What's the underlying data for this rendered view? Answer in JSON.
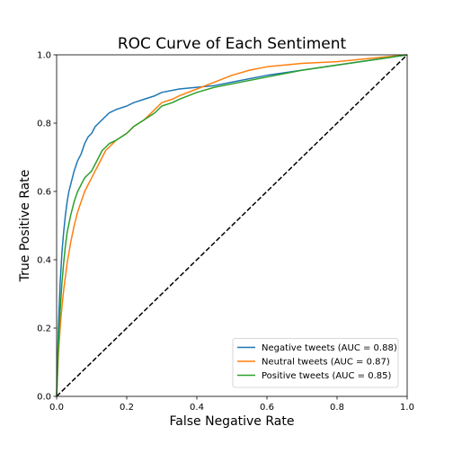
{
  "chart_data": {
    "type": "line",
    "title": "ROC Curve of Each Sentiment",
    "xlabel": "False Negative Rate",
    "ylabel": "True Positive Rate",
    "xlim": [
      0.0,
      1.0
    ],
    "ylim": [
      0.0,
      1.0
    ],
    "xticks": [
      "0.0",
      "0.2",
      "0.4",
      "0.6",
      "0.8",
      "1.0"
    ],
    "yticks": [
      "0.0",
      "0.2",
      "0.4",
      "0.6",
      "0.8",
      "1.0"
    ],
    "grid": false,
    "legend_position": "lower-right",
    "diagonal": {
      "style": "dashed",
      "color": "#000000",
      "from": [
        0,
        0
      ],
      "to": [
        1,
        1
      ]
    },
    "series": [
      {
        "name": "Negative tweets (AUC = 0.88)",
        "color": "#1f77b4",
        "x": [
          0.0,
          0.005,
          0.01,
          0.015,
          0.02,
          0.025,
          0.03,
          0.035,
          0.04,
          0.05,
          0.06,
          0.07,
          0.08,
          0.09,
          0.1,
          0.11,
          0.12,
          0.13,
          0.14,
          0.15,
          0.17,
          0.2,
          0.22,
          0.25,
          0.28,
          0.3,
          0.35,
          0.4,
          0.45,
          0.5,
          0.6,
          0.7,
          0.8,
          0.9,
          1.0
        ],
        "y": [
          0.0,
          0.2,
          0.33,
          0.42,
          0.48,
          0.53,
          0.57,
          0.6,
          0.62,
          0.66,
          0.69,
          0.71,
          0.74,
          0.76,
          0.77,
          0.79,
          0.8,
          0.81,
          0.82,
          0.83,
          0.84,
          0.85,
          0.86,
          0.87,
          0.88,
          0.89,
          0.9,
          0.905,
          0.91,
          0.92,
          0.94,
          0.955,
          0.97,
          0.985,
          1.0
        ]
      },
      {
        "name": "Neutral tweets (AUC = 0.87)",
        "color": "#ff7f0e",
        "x": [
          0.0,
          0.005,
          0.01,
          0.015,
          0.02,
          0.025,
          0.03,
          0.04,
          0.05,
          0.06,
          0.07,
          0.08,
          0.09,
          0.1,
          0.11,
          0.12,
          0.13,
          0.14,
          0.15,
          0.17,
          0.2,
          0.22,
          0.25,
          0.28,
          0.3,
          0.33,
          0.35,
          0.4,
          0.45,
          0.5,
          0.55,
          0.6,
          0.65,
          0.7,
          0.8,
          0.9,
          1.0
        ],
        "y": [
          0.0,
          0.12,
          0.2,
          0.26,
          0.31,
          0.35,
          0.39,
          0.45,
          0.5,
          0.54,
          0.57,
          0.6,
          0.62,
          0.64,
          0.66,
          0.68,
          0.7,
          0.72,
          0.73,
          0.75,
          0.77,
          0.79,
          0.81,
          0.84,
          0.86,
          0.87,
          0.88,
          0.9,
          0.92,
          0.94,
          0.955,
          0.965,
          0.97,
          0.975,
          0.98,
          0.99,
          1.0
        ]
      },
      {
        "name": "Positive tweets (AUC = 0.85)",
        "color": "#2ca02c",
        "x": [
          0.0,
          0.005,
          0.01,
          0.015,
          0.02,
          0.025,
          0.03,
          0.04,
          0.05,
          0.06,
          0.07,
          0.08,
          0.09,
          0.1,
          0.11,
          0.12,
          0.13,
          0.14,
          0.15,
          0.17,
          0.2,
          0.22,
          0.25,
          0.28,
          0.3,
          0.33,
          0.35,
          0.4,
          0.45,
          0.5,
          0.6,
          0.7,
          0.8,
          0.9,
          1.0
        ],
        "y": [
          0.0,
          0.15,
          0.25,
          0.33,
          0.39,
          0.44,
          0.48,
          0.53,
          0.57,
          0.6,
          0.62,
          0.64,
          0.65,
          0.66,
          0.68,
          0.7,
          0.72,
          0.73,
          0.74,
          0.75,
          0.77,
          0.79,
          0.81,
          0.83,
          0.85,
          0.86,
          0.87,
          0.89,
          0.905,
          0.915,
          0.935,
          0.955,
          0.97,
          0.985,
          1.0
        ]
      }
    ]
  }
}
